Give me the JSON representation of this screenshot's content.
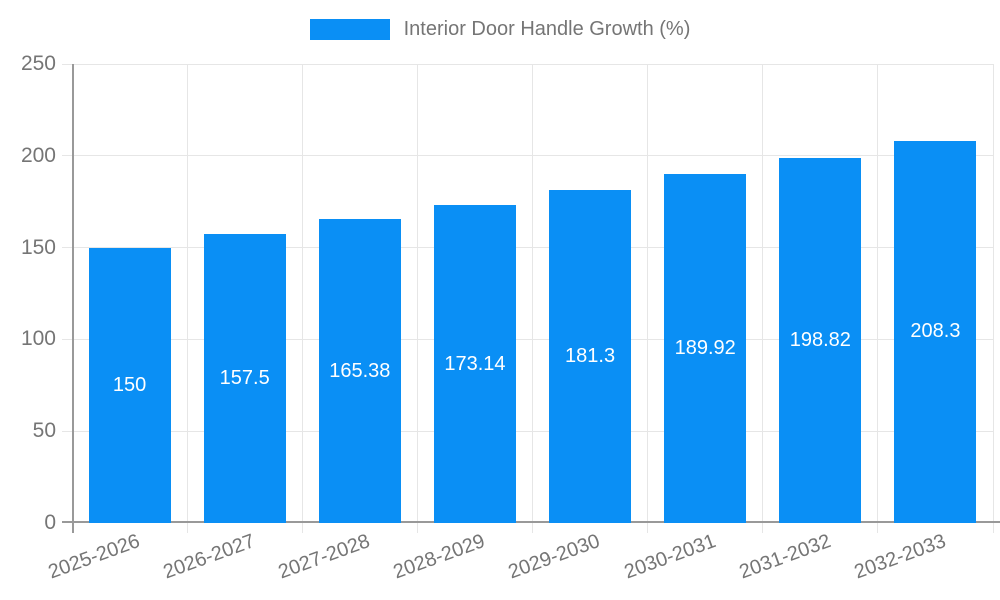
{
  "legend": {
    "label": "Interior Door Handle Growth (%)"
  },
  "chart_data": {
    "type": "bar",
    "title": "Interior Door Handle Growth (%)",
    "categories": [
      "2025-2026",
      "2026-2027",
      "2027-2028",
      "2028-2029",
      "2029-2030",
      "2030-2031",
      "2031-2032",
      "2032-2033"
    ],
    "values": [
      150,
      157.5,
      165.38,
      173.14,
      181.3,
      189.92,
      198.82,
      208.3
    ],
    "value_labels": [
      "150",
      "157.5",
      "165.38",
      "173.14",
      "181.3",
      "189.92",
      "198.82",
      "208.3"
    ],
    "xlabel": "",
    "ylabel": "",
    "ylim": [
      0,
      250
    ],
    "yticks": [
      0,
      50,
      100,
      150,
      200,
      250
    ],
    "grid": true,
    "legend_position": "top",
    "bar_color": "#0a8ff5",
    "bar_label_color": "#ffffff",
    "grid_color": "#e6e6e6",
    "axis_color": "#999999",
    "tick_text_color": "#757575"
  }
}
